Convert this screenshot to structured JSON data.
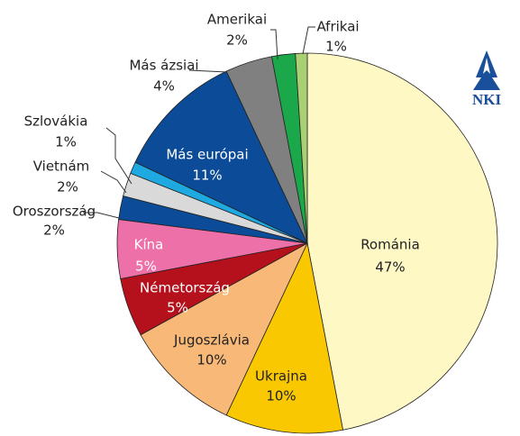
{
  "chart_data": {
    "type": "pie",
    "categories": [
      "Románia",
      "Ukrajna",
      "Jugoszlávia",
      "Németország",
      "Kína",
      "Oroszország",
      "Vietnám",
      "Szlovákia",
      "Más európai",
      "Más ázsiai",
      "Amerikai",
      "Afrikai"
    ],
    "values": [
      47,
      10,
      10,
      5,
      5,
      2,
      2,
      1,
      11,
      4,
      2,
      1
    ],
    "value_labels": [
      "47%",
      "10%",
      "10%",
      "5%",
      "5%",
      "2%",
      "2%",
      "1%",
      "11%",
      "4%",
      "2%",
      "1%"
    ],
    "colors": [
      "#fdf8c4",
      "#f9c800",
      "#f8b878",
      "#b5111d",
      "#ee70a8",
      "#0b4b97",
      "#d9d9d9",
      "#1ea9e1",
      "#0b4b97",
      "#808080",
      "#1ba84b",
      "#a9d072"
    ],
    "logo": "NKI"
  }
}
